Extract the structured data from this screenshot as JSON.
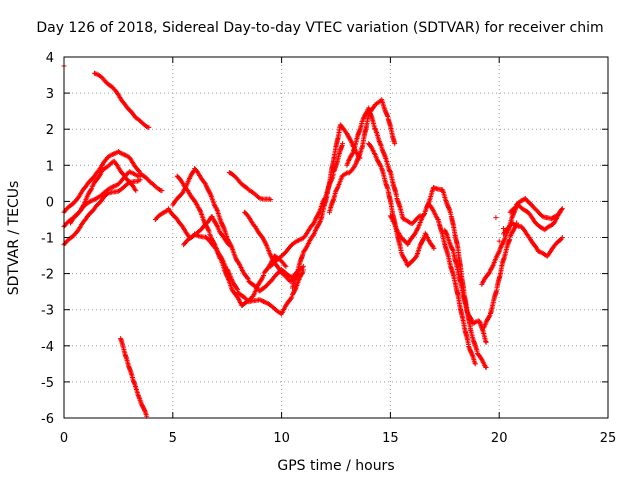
{
  "chart_data": {
    "type": "scatter",
    "title": "Day 126 of 2018, Sidereal Day-to-day VTEC variation (SDTVAR) for receiver chim",
    "xlabel": "GPS time / hours",
    "ylabel": "SDTVAR / TECUs",
    "xlim": [
      0,
      25
    ],
    "ylim": [
      -6,
      4
    ],
    "xticks": [
      0,
      5,
      10,
      15,
      20,
      25
    ],
    "yticks": [
      -6,
      -5,
      -4,
      -3,
      -2,
      -1,
      0,
      1,
      2,
      3,
      4
    ],
    "grid": true,
    "marker": "+",
    "color": "#ff0000",
    "series": [
      {
        "name": "trace-1",
        "points": [
          [
            0,
            -0.3
          ],
          [
            0.5,
            0
          ],
          [
            1,
            0.4
          ],
          [
            1.5,
            0.8
          ],
          [
            2,
            1.2
          ],
          [
            2.5,
            1.4
          ],
          [
            3,
            1.2
          ],
          [
            3.5,
            0.8
          ],
          [
            4,
            0.5
          ],
          [
            4.5,
            0.3
          ]
        ]
      },
      {
        "name": "trace-2",
        "points": [
          [
            0,
            -1.2
          ],
          [
            0.5,
            -0.9
          ],
          [
            1,
            -0.5
          ],
          [
            1.5,
            -0.1
          ],
          [
            2,
            0.2
          ],
          [
            2.5,
            0.3
          ],
          [
            3,
            0.5
          ],
          [
            3.5,
            0.6
          ]
        ]
      },
      {
        "name": "trace-3",
        "points": [
          [
            0,
            -0.7
          ],
          [
            0.5,
            -0.4
          ],
          [
            1,
            -0.1
          ],
          [
            1.5,
            0.1
          ],
          [
            2,
            0.3
          ],
          [
            2.5,
            0.5
          ],
          [
            3,
            0.8
          ],
          [
            3.5,
            0.7
          ]
        ]
      },
      {
        "name": "trace-4",
        "points": [
          [
            0.3,
            -0.6
          ],
          [
            0.8,
            -0.2
          ],
          [
            1.3,
            0.4
          ],
          [
            1.8,
            0.9
          ],
          [
            2.3,
            1.1
          ],
          [
            2.8,
            0.7
          ],
          [
            3.3,
            0.3
          ]
        ]
      },
      {
        "name": "trace-5",
        "points": [
          [
            1.4,
            3.55
          ],
          [
            1.8,
            3.4
          ],
          [
            2.3,
            3.1
          ],
          [
            2.8,
            2.7
          ],
          [
            3.3,
            2.3
          ],
          [
            3.9,
            2.05
          ]
        ]
      },
      {
        "name": "trace-6",
        "points": [
          [
            2.6,
            -3.8
          ],
          [
            2.9,
            -4.4
          ],
          [
            3.2,
            -5.0
          ],
          [
            3.5,
            -5.5
          ],
          [
            3.8,
            -5.95
          ]
        ]
      },
      {
        "name": "trace-7",
        "points": [
          [
            4.2,
            -0.5
          ],
          [
            4.8,
            -0.2
          ],
          [
            5.3,
            -0.6
          ],
          [
            5.8,
            -1.0
          ],
          [
            6.3,
            -0.8
          ],
          [
            6.8,
            -0.4
          ],
          [
            7.2,
            -0.9
          ],
          [
            7.6,
            -1.2
          ]
        ]
      },
      {
        "name": "trace-8",
        "points": [
          [
            5.0,
            -0.1
          ],
          [
            5.5,
            0.3
          ],
          [
            6.0,
            0.9
          ],
          [
            6.5,
            0.5
          ],
          [
            7.0,
            -0.2
          ],
          [
            7.5,
            -1.0
          ],
          [
            8.0,
            -1.7
          ],
          [
            8.5,
            -2.2
          ],
          [
            9.0,
            -2.5
          ],
          [
            9.5,
            -2.2
          ],
          [
            10.0,
            -1.9
          ],
          [
            10.5,
            -2.1
          ],
          [
            11.0,
            -1.8
          ]
        ]
      },
      {
        "name": "trace-9",
        "points": [
          [
            5.2,
            0.7
          ],
          [
            5.7,
            0.3
          ],
          [
            6.2,
            -0.2
          ],
          [
            6.7,
            -0.9
          ],
          [
            7.2,
            -1.6
          ],
          [
            7.7,
            -2.4
          ],
          [
            8.2,
            -2.9
          ],
          [
            8.7,
            -2.6
          ],
          [
            9.2,
            -2.0
          ],
          [
            9.7,
            -1.5
          ],
          [
            10.2,
            -1.8
          ]
        ]
      },
      {
        "name": "trace-10",
        "points": [
          [
            5.5,
            -1.2
          ],
          [
            6.0,
            -0.9
          ],
          [
            6.5,
            -1.0
          ],
          [
            7.0,
            -1.3
          ],
          [
            7.5,
            -1.9
          ],
          [
            8.0,
            -2.5
          ],
          [
            8.5,
            -2.8
          ],
          [
            9.0,
            -2.7
          ],
          [
            9.5,
            -2.9
          ],
          [
            10.0,
            -3.1
          ],
          [
            10.5,
            -2.6
          ],
          [
            11.0,
            -1.9
          ]
        ]
      },
      {
        "name": "trace-11",
        "points": [
          [
            7.6,
            0.8
          ],
          [
            8.0,
            0.6
          ],
          [
            8.5,
            0.3
          ],
          [
            9.0,
            0.1
          ],
          [
            9.5,
            0.05
          ]
        ]
      },
      {
        "name": "trace-12",
        "points": [
          [
            8.3,
            -0.3
          ],
          [
            8.8,
            -0.7
          ],
          [
            9.2,
            -1.1
          ],
          [
            9.6,
            -1.6
          ],
          [
            10.0,
            -2.0
          ],
          [
            10.4,
            -2.2
          ],
          [
            10.8,
            -2.0
          ]
        ]
      },
      {
        "name": "trace-13",
        "points": [
          [
            9.5,
            -1.8
          ],
          [
            10.0,
            -1.5
          ],
          [
            10.5,
            -1.2
          ],
          [
            11.0,
            -1.0
          ],
          [
            11.5,
            -0.6
          ],
          [
            12.0,
            0.1
          ],
          [
            12.4,
            0.8
          ],
          [
            12.8,
            1.6
          ]
        ]
      },
      {
        "name": "trace-14",
        "points": [
          [
            10.5,
            -2.4
          ],
          [
            11.0,
            -1.4
          ],
          [
            11.5,
            -0.9
          ],
          [
            11.8,
            -0.5
          ],
          [
            12.1,
            0.2
          ],
          [
            12.4,
            1.2
          ],
          [
            12.7,
            2.1
          ],
          [
            13.0,
            1.9
          ],
          [
            13.3,
            1.5
          ],
          [
            13.6,
            1.2
          ]
        ]
      },
      {
        "name": "trace-15",
        "points": [
          [
            12.2,
            -0.3
          ],
          [
            12.5,
            0.3
          ],
          [
            12.8,
            0.7
          ],
          [
            13.1,
            0.8
          ],
          [
            13.4,
            1.0
          ],
          [
            13.7,
            1.5
          ],
          [
            14.0,
            2.4
          ],
          [
            14.3,
            2.7
          ],
          [
            14.6,
            2.8
          ],
          [
            14.9,
            2.3
          ],
          [
            15.2,
            1.6
          ]
        ]
      },
      {
        "name": "trace-16",
        "points": [
          [
            13.0,
            1.0
          ],
          [
            13.3,
            1.4
          ],
          [
            13.7,
            2.2
          ],
          [
            14.0,
            2.6
          ],
          [
            14.3,
            2.0
          ],
          [
            14.6,
            1.5
          ],
          [
            15.0,
            0.8
          ],
          [
            15.3,
            0.1
          ],
          [
            15.6,
            -0.5
          ],
          [
            16.0,
            -0.6
          ],
          [
            16.4,
            -0.4
          ]
        ]
      },
      {
        "name": "trace-17",
        "points": [
          [
            14.0,
            1.6
          ],
          [
            14.3,
            1.3
          ],
          [
            14.6,
            0.9
          ],
          [
            14.9,
            0.3
          ],
          [
            15.2,
            -0.6
          ],
          [
            15.5,
            -1.4
          ],
          [
            15.8,
            -1.8
          ],
          [
            16.2,
            -1.5
          ],
          [
            16.6,
            -0.9
          ],
          [
            17.0,
            -1.3
          ]
        ]
      },
      {
        "name": "trace-18",
        "points": [
          [
            15.0,
            -0.4
          ],
          [
            15.4,
            -0.9
          ],
          [
            15.8,
            -1.2
          ],
          [
            16.2,
            -0.8
          ],
          [
            16.6,
            -0.3
          ],
          [
            17.0,
            0.4
          ],
          [
            17.4,
            0.3
          ],
          [
            17.8,
            -0.4
          ],
          [
            18.1,
            -1.3
          ],
          [
            18.4,
            -2.6
          ],
          [
            18.7,
            -3.6
          ],
          [
            19.0,
            -4.2
          ],
          [
            19.4,
            -4.6
          ]
        ]
      },
      {
        "name": "trace-19",
        "points": [
          [
            16.8,
            -0.1
          ],
          [
            17.2,
            -0.5
          ],
          [
            17.6,
            -1.4
          ],
          [
            18.0,
            -2.3
          ],
          [
            18.3,
            -3.2
          ],
          [
            18.6,
            -4.0
          ],
          [
            18.9,
            -4.5
          ]
        ]
      },
      {
        "name": "trace-20",
        "points": [
          [
            17.5,
            -0.8
          ],
          [
            17.9,
            -1.4
          ],
          [
            18.2,
            -2.2
          ],
          [
            18.5,
            -3.0
          ],
          [
            18.8,
            -3.4
          ],
          [
            19.1,
            -3.3
          ],
          [
            19.4,
            -3.9
          ]
        ]
      },
      {
        "name": "trace-21",
        "points": [
          [
            19.3,
            -3.5
          ],
          [
            19.6,
            -3.1
          ],
          [
            19.9,
            -2.4
          ],
          [
            20.2,
            -1.6
          ],
          [
            20.5,
            -1.0
          ],
          [
            20.8,
            -0.6
          ]
        ]
      },
      {
        "name": "trace-22",
        "points": [
          [
            19.2,
            -2.3
          ],
          [
            19.6,
            -1.9
          ],
          [
            20.0,
            -1.4
          ],
          [
            20.4,
            -0.8
          ],
          [
            20.8,
            -0.1
          ],
          [
            21.2,
            0.1
          ],
          [
            21.6,
            -0.2
          ],
          [
            22.0,
            -0.4
          ],
          [
            22.4,
            -0.5
          ],
          [
            22.8,
            -0.3
          ]
        ]
      },
      {
        "name": "trace-23",
        "points": [
          [
            20.2,
            -0.9
          ],
          [
            20.6,
            -0.6
          ],
          [
            21.0,
            -0.7
          ],
          [
            21.4,
            -1.0
          ],
          [
            21.8,
            -1.4
          ],
          [
            22.2,
            -1.5
          ],
          [
            22.6,
            -1.2
          ],
          [
            22.9,
            -1.0
          ]
        ]
      },
      {
        "name": "trace-24",
        "points": [
          [
            20.5,
            -0.3
          ],
          [
            20.9,
            -0.1
          ],
          [
            21.3,
            -0.3
          ],
          [
            21.7,
            -0.6
          ],
          [
            22.1,
            -0.8
          ],
          [
            22.5,
            -0.6
          ],
          [
            22.9,
            -0.2
          ]
        ]
      }
    ],
    "isolated_points": [
      [
        0,
        3.75
      ],
      [
        19.85,
        -0.45
      ],
      [
        20.0,
        -1.1
      ],
      [
        20.2,
        -0.75
      ]
    ]
  }
}
